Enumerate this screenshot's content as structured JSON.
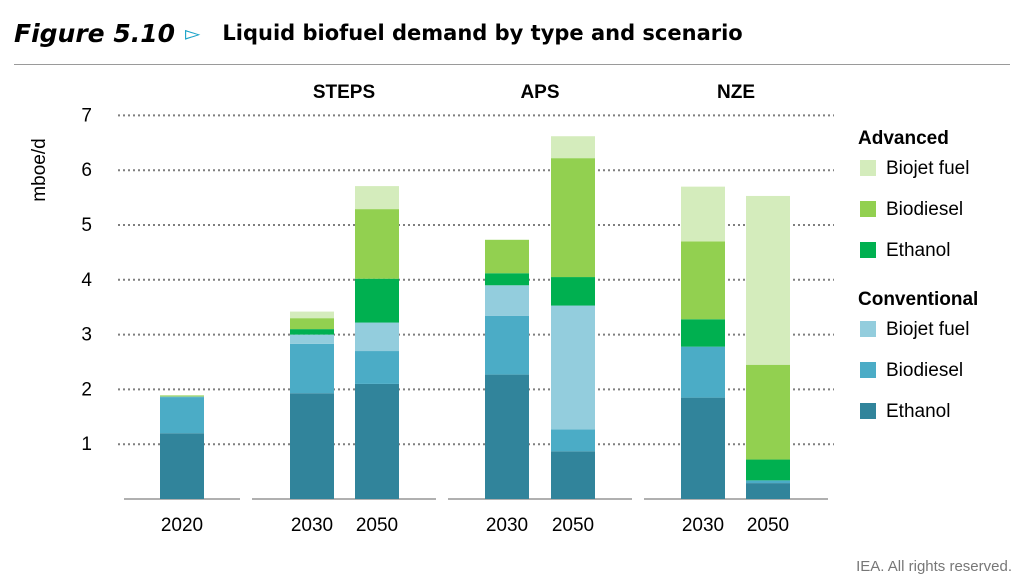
{
  "figure": {
    "number": "Figure 5.10",
    "title": "Liquid biofuel demand by type and scenario",
    "source": "IEA. All rights reserved."
  },
  "colors": {
    "adv_biojet": "#d4ecbc",
    "adv_biodiesel": "#92d050",
    "adv_ethanol": "#00b050",
    "conv_biojet": "#93cddd",
    "conv_biodiesel": "#4bacc6",
    "conv_ethanol": "#31849b",
    "grid": "#7f7f7f",
    "arrow": "#1aa3c8"
  },
  "chart_data": {
    "type": "bar",
    "stacked": true,
    "ylabel": "mboe/d",
    "ylim": [
      0,
      7
    ],
    "yticks": [
      1,
      2,
      3,
      4,
      5,
      6,
      7
    ],
    "groups": [
      {
        "label": "",
        "categories": [
          "2020"
        ]
      },
      {
        "label": "STEPS",
        "categories": [
          "2030",
          "2050"
        ]
      },
      {
        "label": "APS",
        "categories": [
          "2030",
          "2050"
        ]
      },
      {
        "label": "NZE",
        "categories": [
          "2030",
          "2050"
        ]
      }
    ],
    "categories": [
      "2020",
      "2030",
      "2050",
      "2030",
      "2050",
      "2030",
      "2050"
    ],
    "series": [
      {
        "name": "Ethanol",
        "group": "Conventional",
        "key": "conv_ethanol",
        "values": [
          1.2,
          1.93,
          2.1,
          2.27,
          0.87,
          1.85,
          0.29
        ]
      },
      {
        "name": "Biodiesel",
        "group": "Conventional",
        "key": "conv_biodiesel",
        "values": [
          0.66,
          0.9,
          0.6,
          1.07,
          0.4,
          0.93,
          0.05
        ]
      },
      {
        "name": "Biojet fuel",
        "group": "Conventional",
        "key": "conv_biojet",
        "values": [
          0.01,
          0.17,
          0.52,
          0.56,
          2.26,
          0.0,
          0.0
        ]
      },
      {
        "name": "Ethanol",
        "group": "Advanced",
        "key": "adv_ethanol",
        "values": [
          0.0,
          0.1,
          0.8,
          0.22,
          0.52,
          0.5,
          0.38
        ]
      },
      {
        "name": "Biodiesel",
        "group": "Advanced",
        "key": "adv_biodiesel",
        "values": [
          0.02,
          0.2,
          1.27,
          0.61,
          2.17,
          1.42,
          1.73
        ]
      },
      {
        "name": "Biojet fuel",
        "group": "Advanced",
        "key": "adv_biojet",
        "values": [
          0.0,
          0.12,
          0.42,
          0.0,
          0.4,
          1.0,
          3.08
        ]
      }
    ],
    "legend": {
      "placement": "right",
      "sections": [
        {
          "title": "Advanced",
          "items": [
            {
              "label": "Biojet fuel",
              "key": "adv_biojet"
            },
            {
              "label": "Biodiesel",
              "key": "adv_biodiesel"
            },
            {
              "label": "Ethanol",
              "key": "adv_ethanol"
            }
          ]
        },
        {
          "title": "Conventional",
          "items": [
            {
              "label": "Biojet fuel",
              "key": "conv_biojet"
            },
            {
              "label": "Biodiesel",
              "key": "conv_biodiesel"
            },
            {
              "label": "Ethanol",
              "key": "conv_ethanol"
            }
          ]
        }
      ]
    },
    "grid": true
  }
}
